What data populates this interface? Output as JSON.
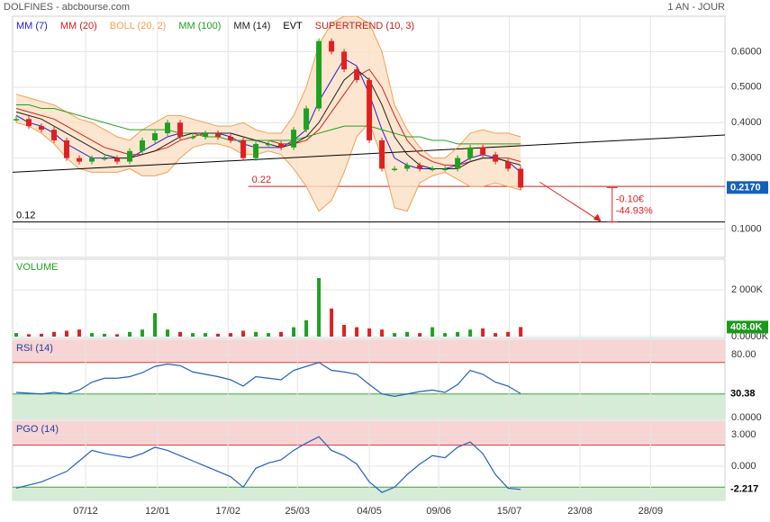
{
  "header": {
    "title": "DOLFINES - abcbourse.com",
    "period": "1 AN - JOUR"
  },
  "x_axis": {
    "x": [
      0,
      1,
      2,
      3,
      4,
      5,
      6,
      7,
      8,
      9,
      10,
      11,
      12,
      13,
      14,
      15,
      16,
      17,
      18,
      19,
      20,
      21,
      22,
      23,
      24,
      25,
      26,
      27,
      28,
      29,
      30,
      31,
      32,
      33,
      34,
      35,
      36,
      37,
      38,
      39,
      40
    ],
    "xlim": [
      -0.286,
      56.2
    ],
    "xticks": [
      {
        "value": 5.5,
        "label": "07/12"
      },
      {
        "value": 11.2,
        "label": "12/01"
      },
      {
        "value": 16.8,
        "label": "17/02"
      },
      {
        "value": 22.3,
        "label": "25/03"
      },
      {
        "value": 28,
        "label": "04/05"
      },
      {
        "value": 33.5,
        "label": "09/06"
      },
      {
        "value": 39.1,
        "label": "15/07"
      },
      {
        "value": 44.7,
        "label": "23/08"
      },
      {
        "value": 50.3,
        "label": "28/09"
      }
    ]
  },
  "chart_data": [
    {
      "type": "candlestick",
      "values": [
        0.41,
        0.39,
        0.38,
        0.35,
        0.3,
        0.29,
        0.3,
        0.3,
        0.29,
        0.32,
        0.35,
        0.37,
        0.4,
        0.36,
        0.36,
        0.37,
        0.36,
        0.35,
        0.3,
        0.34,
        0.34,
        0.33,
        0.38,
        0.44,
        0.63,
        0.6,
        0.55,
        0.52,
        0.35,
        0.27,
        0.27,
        0.28,
        0.27,
        0.27,
        0.27,
        0.3,
        0.33,
        0.31,
        0.29,
        0.27,
        0.217
      ],
      "up_color": "#20a020",
      "down_color": "#e02020",
      "ylim": [
        0.02,
        0.7
      ],
      "yticks": [
        {
          "value": 0.6,
          "label": "0.6000"
        },
        {
          "value": 0.5,
          "label": "0.5000"
        },
        {
          "value": 0.4,
          "label": "0.4000"
        },
        {
          "value": 0.3,
          "label": "0.3000"
        },
        {
          "value": 0.1,
          "label": "0.1000"
        }
      ],
      "series": [
        {
          "name": "MM (7)",
          "color": "#2020d0",
          "values": [
            0.42,
            0.4,
            0.39,
            0.37,
            0.34,
            0.32,
            0.3,
            0.3,
            0.3,
            0.3,
            0.32,
            0.34,
            0.36,
            0.37,
            0.37,
            0.37,
            0.37,
            0.36,
            0.34,
            0.33,
            0.33,
            0.33,
            0.35,
            0.38,
            0.46,
            0.52,
            0.58,
            0.56,
            0.48,
            0.38,
            0.3,
            0.28,
            0.27,
            0.27,
            0.27,
            0.28,
            0.3,
            0.31,
            0.3,
            0.29,
            0.26
          ]
        },
        {
          "name": "MM (20)",
          "color": "#d02020",
          "values": [
            0.44,
            0.43,
            0.42,
            0.41,
            0.39,
            0.37,
            0.35,
            0.33,
            0.32,
            0.31,
            0.31,
            0.32,
            0.33,
            0.35,
            0.36,
            0.37,
            0.37,
            0.37,
            0.36,
            0.35,
            0.35,
            0.34,
            0.34,
            0.35,
            0.38,
            0.43,
            0.48,
            0.53,
            0.55,
            0.5,
            0.42,
            0.35,
            0.31,
            0.29,
            0.28,
            0.28,
            0.29,
            0.3,
            0.3,
            0.3,
            0.29
          ]
        },
        {
          "name": "BOLL (20, 2)",
          "color": "#f0a050",
          "fill": "#fbe0c4",
          "values": [
            0.48,
            0.47,
            0.46,
            0.45,
            0.43,
            0.41,
            0.4,
            0.38,
            0.36,
            0.35,
            0.38,
            0.4,
            0.42,
            0.42,
            0.41,
            0.4,
            0.39,
            0.39,
            0.4,
            0.38,
            0.37,
            0.37,
            0.42,
            0.5,
            0.62,
            0.68,
            0.7,
            0.7,
            0.68,
            0.6,
            0.45,
            0.38,
            0.33,
            0.3,
            0.3,
            0.33,
            0.37,
            0.38,
            0.37,
            0.37,
            0.36
          ],
          "lower": [
            0.4,
            0.39,
            0.37,
            0.34,
            0.3,
            0.27,
            0.26,
            0.26,
            0.26,
            0.27,
            0.25,
            0.25,
            0.26,
            0.3,
            0.33,
            0.34,
            0.34,
            0.33,
            0.31,
            0.31,
            0.32,
            0.31,
            0.27,
            0.22,
            0.15,
            0.18,
            0.26,
            0.36,
            0.4,
            0.3,
            0.16,
            0.15,
            0.23,
            0.25,
            0.26,
            0.24,
            0.22,
            0.22,
            0.23,
            0.22,
            0.21
          ]
        },
        {
          "name": "MM (100)",
          "color": "#20a020",
          "values": [
            0.45,
            0.45,
            0.44,
            0.44,
            0.43,
            0.42,
            0.41,
            0.4,
            0.39,
            0.38,
            0.38,
            0.38,
            0.38,
            0.37,
            0.37,
            0.36,
            0.36,
            0.35,
            0.35,
            0.35,
            0.35,
            0.35,
            0.35,
            0.36,
            0.37,
            0.38,
            0.39,
            0.39,
            0.39,
            0.38,
            0.37,
            0.36,
            0.36,
            0.35,
            0.35,
            0.34,
            0.34,
            0.34,
            0.34,
            0.34,
            0.34
          ]
        },
        {
          "name": "MM (14)",
          "color": "#202020",
          "values": [
            0.43,
            0.42,
            0.41,
            0.39,
            0.37,
            0.35,
            0.33,
            0.31,
            0.3,
            0.3,
            0.31,
            0.32,
            0.34,
            0.36,
            0.37,
            0.37,
            0.37,
            0.37,
            0.36,
            0.35,
            0.34,
            0.33,
            0.34,
            0.36,
            0.4,
            0.46,
            0.52,
            0.55,
            0.52,
            0.45,
            0.36,
            0.31,
            0.28,
            0.27,
            0.27,
            0.27,
            0.29,
            0.3,
            0.3,
            0.29,
            0.28
          ]
        },
        {
          "name": "EVT",
          "color": "#000000"
        },
        {
          "name": "SUPERTREND (10, 3)",
          "color": "#c02020"
        }
      ],
      "last_label": "0.2170",
      "label_box": {
        "fill": "#1560bd",
        "text": "#ffffff"
      },
      "levels": [
        {
          "value": 0.22,
          "color": "#d02020",
          "x_start": 18.4
        },
        {
          "value": 0.12,
          "color": "#000000"
        }
      ],
      "trendline": {
        "x": [
          -0.286,
          56.2
        ],
        "y": [
          0.26,
          0.365
        ],
        "color": "#000000"
      },
      "projection": {
        "from": [
          40.8,
          0.217
        ],
        "to": [
          46.4,
          0.12
        ],
        "change_label": "-0.10€",
        "percent_label": "-44.93%",
        "color": "#e02020"
      }
    },
    {
      "type": "bar",
      "title": "VOLUME",
      "title_color": "#20a020",
      "values": [
        150,
        100,
        120,
        200,
        250,
        300,
        150,
        120,
        100,
        200,
        300,
        1000,
        300,
        200,
        150,
        150,
        120,
        150,
        250,
        200,
        150,
        200,
        400,
        700,
        2500,
        1200,
        500,
        400,
        350,
        300,
        150,
        200,
        150,
        400,
        150,
        200,
        300,
        350,
        150,
        200,
        408
      ],
      "ylim": [
        -77,
        3308
      ],
      "yticks": [
        {
          "value": 2000,
          "label": "2 000K"
        },
        {
          "value": 0,
          "label": "0.0000K"
        }
      ],
      "last_label": "408.0K",
      "label_box": {
        "fill": "#1a9a1a",
        "text": "#ffffff"
      }
    },
    {
      "type": "line",
      "title": "RSI (14)",
      "title_color": "#2040a0",
      "color": "#2060c0",
      "values": [
        32,
        31,
        30,
        32,
        30,
        35,
        45,
        50,
        50,
        52,
        57,
        65,
        68,
        66,
        58,
        55,
        52,
        48,
        40,
        52,
        50,
        48,
        60,
        65,
        70,
        60,
        58,
        55,
        42,
        30,
        27,
        30,
        33,
        35,
        32,
        42,
        60,
        55,
        45,
        40,
        30.38
      ],
      "ylim": [
        -2.3,
        98.3
      ],
      "yticks": [
        {
          "value": 80,
          "label": "80.00"
        },
        {
          "value": 0,
          "label": "0.0000"
        }
      ],
      "zones": {
        "high": 70,
        "low": 30,
        "high_color": "#f8d4d4",
        "low_color": "#d6ecd6",
        "high_line": "#d04040",
        "low_line": "#40a040"
      },
      "last_label": "30.38",
      "label_box": {
        "fill": "#ffffff",
        "text": "#000000"
      }
    },
    {
      "type": "line",
      "title": "PGO (14)",
      "title_color": "#2040a0",
      "color": "#2060c0",
      "values": [
        -2.1,
        -1.8,
        -1.5,
        -1.0,
        -0.5,
        0.5,
        1.5,
        1.2,
        1.0,
        0.8,
        1.2,
        1.8,
        1.5,
        1.0,
        0.5,
        0.0,
        -0.5,
        -1.0,
        -2.0,
        -0.2,
        0.3,
        0.6,
        1.5,
        2.2,
        2.8,
        1.5,
        1.0,
        0.2,
        -1.5,
        -2.5,
        -2.0,
        -0.8,
        0.2,
        1.0,
        0.8,
        1.8,
        2.3,
        1.2,
        -0.8,
        -2.1,
        -2.217
      ],
      "ylim": [
        -3.26,
        4.28
      ],
      "yticks": [
        {
          "value": 3,
          "label": "3.000"
        },
        {
          "value": 0,
          "label": "0.000"
        }
      ],
      "zones": {
        "high": 2,
        "low": -2,
        "high_color": "#f8d4d4",
        "low_color": "#d6ecd6",
        "high_line": "#d04040",
        "low_line": "#40a040"
      },
      "last_label": "-2.217",
      "label_box": {
        "fill": "#ffffff",
        "text": "#000000"
      }
    }
  ]
}
